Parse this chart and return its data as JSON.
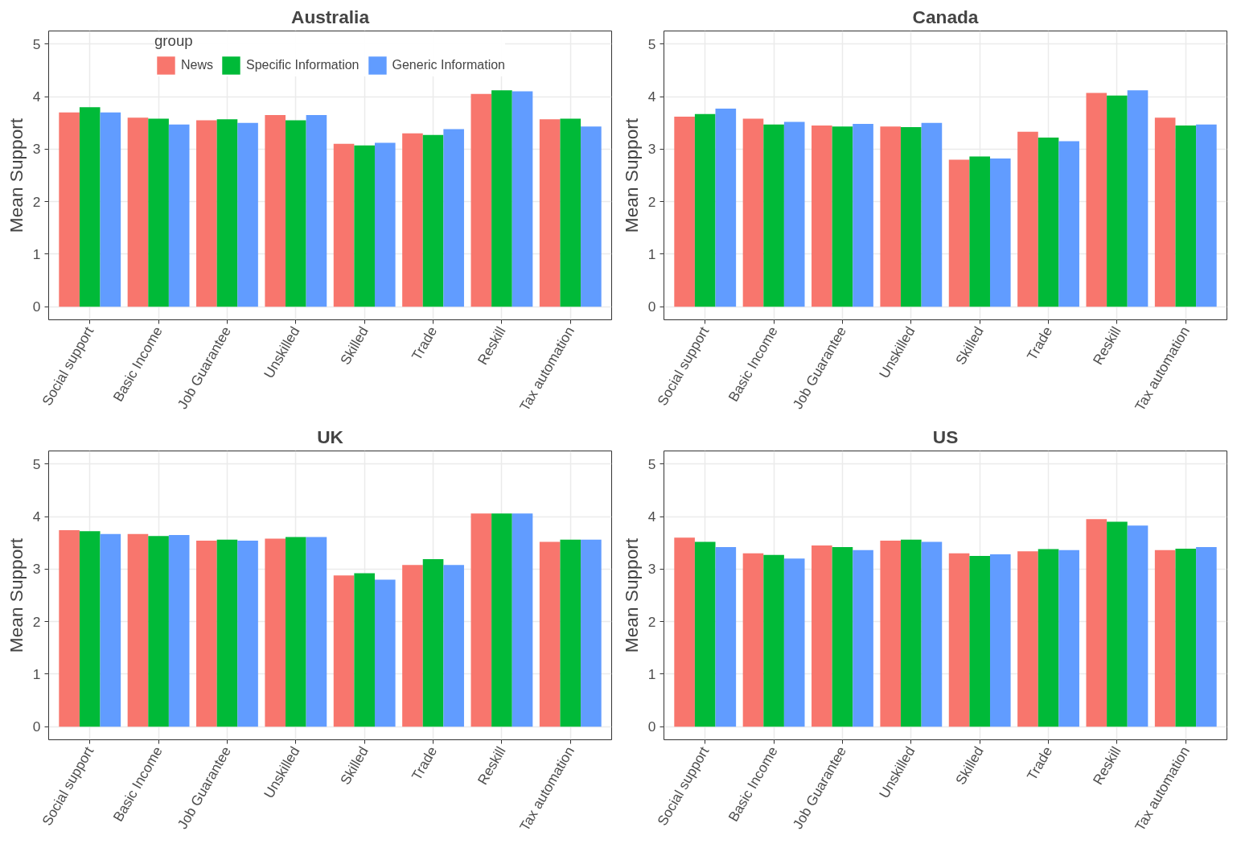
{
  "chart_data": [
    {
      "type": "bar",
      "title": "Australia",
      "ylabel": "Mean Support",
      "categories": [
        "Social support",
        "Basic Income",
        "Job Guarantee",
        "Unskilled",
        "Skilled",
        "Trade",
        "Reskill",
        "Tax automation"
      ],
      "ylim": [
        -0.25,
        5.25
      ],
      "yticks": [
        0,
        1,
        2,
        3,
        4,
        5
      ],
      "grid": true,
      "legend": "top",
      "legend_title": "group",
      "series": [
        {
          "name": "News",
          "color": "#f8766d",
          "values": [
            3.7,
            3.6,
            3.55,
            3.65,
            3.1,
            3.3,
            4.05,
            3.57
          ]
        },
        {
          "name": "Specific Information",
          "color": "#00ba38",
          "values": [
            3.8,
            3.58,
            3.57,
            3.55,
            3.07,
            3.27,
            4.12,
            3.58
          ]
        },
        {
          "name": "Generic Information",
          "color": "#619cff",
          "values": [
            3.7,
            3.47,
            3.5,
            3.65,
            3.12,
            3.38,
            4.1,
            3.43
          ]
        }
      ]
    },
    {
      "type": "bar",
      "title": "Canada",
      "ylabel": "Mean Support",
      "categories": [
        "Social support",
        "Basic Income",
        "Job Guarantee",
        "Unskilled",
        "Skilled",
        "Trade",
        "Reskill",
        "Tax automation"
      ],
      "ylim": [
        -0.25,
        5.25
      ],
      "yticks": [
        0,
        1,
        2,
        3,
        4,
        5
      ],
      "grid": true,
      "series": [
        {
          "color": "#f8766d",
          "values": [
            3.62,
            3.58,
            3.45,
            3.43,
            2.8,
            3.33,
            4.07,
            3.6
          ]
        },
        {
          "color": "#00ba38",
          "values": [
            3.67,
            3.47,
            3.43,
            3.42,
            2.86,
            3.22,
            4.02,
            3.45
          ]
        },
        {
          "color": "#619cff",
          "values": [
            3.77,
            3.52,
            3.48,
            3.5,
            2.82,
            3.15,
            4.12,
            3.47
          ]
        }
      ]
    },
    {
      "type": "bar",
      "title": "UK",
      "ylabel": "Mean Support",
      "categories": [
        "Social support",
        "Basic Income",
        "Job Guarantee",
        "Unskilled",
        "Skilled",
        "Trade",
        "Reskill",
        "Tax automation"
      ],
      "ylim": [
        -0.25,
        5.25
      ],
      "yticks": [
        0,
        1,
        2,
        3,
        4,
        5
      ],
      "grid": true,
      "series": [
        {
          "color": "#f8766d",
          "values": [
            3.74,
            3.67,
            3.54,
            3.58,
            2.88,
            3.08,
            4.06,
            3.52
          ]
        },
        {
          "color": "#00ba38",
          "values": [
            3.72,
            3.63,
            3.56,
            3.61,
            2.92,
            3.19,
            4.06,
            3.56
          ]
        },
        {
          "color": "#619cff",
          "values": [
            3.67,
            3.65,
            3.54,
            3.61,
            2.8,
            3.08,
            4.06,
            3.56
          ]
        }
      ]
    },
    {
      "type": "bar",
      "title": "US",
      "ylabel": "Mean Support",
      "categories": [
        "Social support",
        "Basic Income",
        "Job Guarantee",
        "Unskilled",
        "Skilled",
        "Trade",
        "Reskill",
        "Tax automation"
      ],
      "ylim": [
        -0.25,
        5.25
      ],
      "yticks": [
        0,
        1,
        2,
        3,
        4,
        5
      ],
      "grid": true,
      "series": [
        {
          "color": "#f8766d",
          "values": [
            3.6,
            3.3,
            3.45,
            3.54,
            3.3,
            3.34,
            3.95,
            3.36
          ]
        },
        {
          "color": "#00ba38",
          "values": [
            3.52,
            3.27,
            3.42,
            3.56,
            3.25,
            3.38,
            3.9,
            3.39
          ]
        },
        {
          "color": "#619cff",
          "values": [
            3.42,
            3.2,
            3.36,
            3.52,
            3.28,
            3.36,
            3.83,
            3.42
          ]
        }
      ]
    }
  ]
}
